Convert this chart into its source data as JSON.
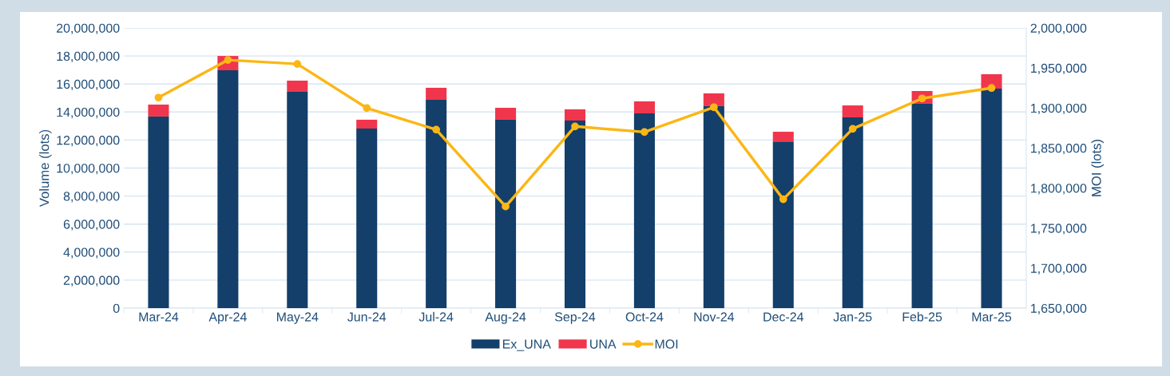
{
  "chart_data": {
    "type": "bar",
    "stacked": true,
    "xlabel": null,
    "ylabel": "Volume (lots)",
    "y2label": "MOI (lots)",
    "categories": [
      "Mar-24",
      "Apr-24",
      "May-24",
      "Jun-24",
      "Jul-24",
      "Aug-24",
      "Sep-24",
      "Oct-24",
      "Nov-24",
      "Dec-24",
      "Jan-25",
      "Feb-25",
      "Mar-25"
    ],
    "series": [
      {
        "name": "Ex_UNA",
        "color": "#133f6a",
        "values": [
          13680000,
          16980000,
          15440000,
          12820000,
          14870000,
          13450000,
          13390000,
          13900000,
          14420000,
          11900000,
          13620000,
          14590000,
          15670000
        ]
      },
      {
        "name": "UNA",
        "color": "#f0364c",
        "values": [
          850000,
          1020000,
          800000,
          630000,
          860000,
          850000,
          800000,
          860000,
          910000,
          690000,
          850000,
          910000,
          1030000
        ]
      },
      {
        "name": "MOI",
        "type": "line",
        "axis": "y2",
        "color": "#fbb717",
        "marker": "circle",
        "values": [
          1913000,
          1960000,
          1955000,
          1900000,
          1873000,
          1777000,
          1877000,
          1870000,
          1901000,
          1786000,
          1874000,
          1912000,
          1925000
        ]
      }
    ],
    "ylim": [
      0,
      20000000
    ],
    "yticks": [
      {
        "value": 0,
        "label": "0"
      },
      {
        "value": 2000000,
        "label": "2,000,000"
      },
      {
        "value": 4000000,
        "label": "4,000,000"
      },
      {
        "value": 6000000,
        "label": "6,000,000"
      },
      {
        "value": 8000000,
        "label": "8,000,000"
      },
      {
        "value": 10000000,
        "label": "10,000,000"
      },
      {
        "value": 12000000,
        "label": "12,000,000"
      },
      {
        "value": 14000000,
        "label": "14,000,000"
      },
      {
        "value": 16000000,
        "label": "16,000,000"
      },
      {
        "value": 18000000,
        "label": "18,000,000"
      },
      {
        "value": 20000000,
        "label": "20,000,000"
      }
    ],
    "y2lim": [
      1650000,
      2000000
    ],
    "y2ticks": [
      {
        "value": 1650000,
        "label": "1,650,000"
      },
      {
        "value": 1700000,
        "label": "1,700,000"
      },
      {
        "value": 1750000,
        "label": "1,750,000"
      },
      {
        "value": 1800000,
        "label": "1,800,000"
      },
      {
        "value": 1850000,
        "label": "1,850,000"
      },
      {
        "value": 1900000,
        "label": "1,900,000"
      },
      {
        "value": 1950000,
        "label": "1,950,000"
      },
      {
        "value": 2000000,
        "label": "2,000,000"
      }
    ],
    "grid": "y",
    "legend": "bottom"
  }
}
